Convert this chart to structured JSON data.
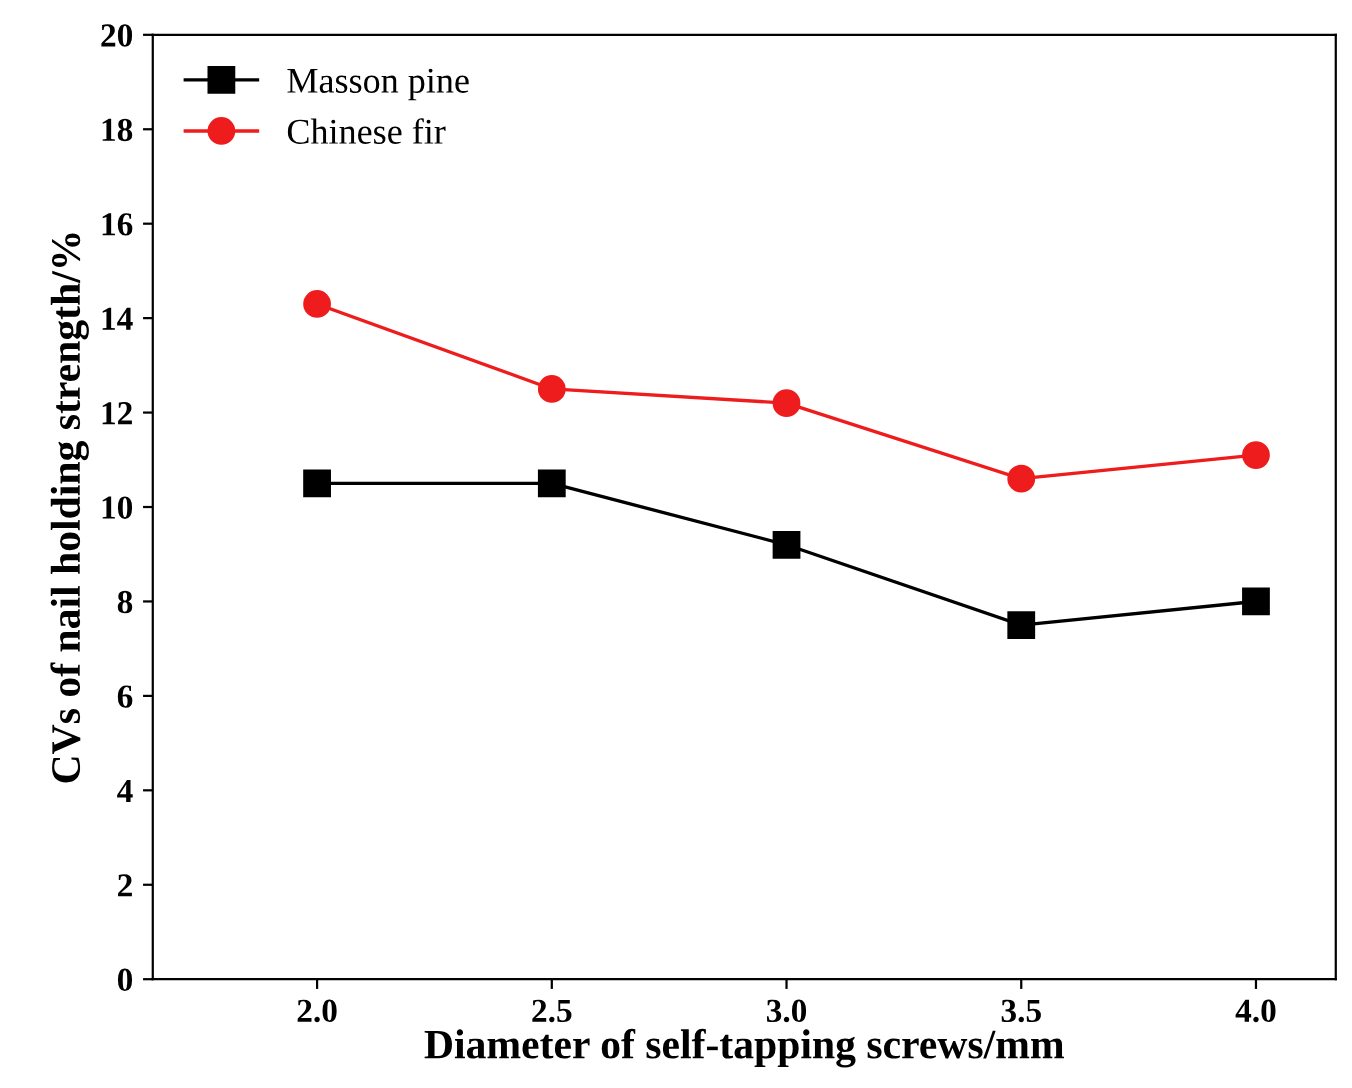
{
  "chart_data": {
    "type": "line",
    "xlabel": "Diameter of self-tapping screws/mm",
    "ylabel": "CVs of nail holding strength/%",
    "x": [
      2.0,
      2.5,
      3.0,
      3.5,
      4.0
    ],
    "series": [
      {
        "name": "Masson pine",
        "color": "#000000",
        "marker": "square",
        "values": [
          10.5,
          10.5,
          9.2,
          7.5,
          8.0
        ]
      },
      {
        "name": "Chinese fir",
        "color": "#ee1c1c",
        "marker": "circle",
        "values": [
          14.3,
          12.5,
          12.2,
          10.6,
          11.1
        ]
      }
    ],
    "xlim": [
      1.65,
      4.17
    ],
    "xticks": [
      {
        "value": 2.0,
        "label": "2.0"
      },
      {
        "value": 2.5,
        "label": "2.5"
      },
      {
        "value": 3.0,
        "label": "3.0"
      },
      {
        "value": 3.5,
        "label": "3.5"
      },
      {
        "value": 4.0,
        "label": "4.0"
      }
    ],
    "ylim": [
      0,
      20
    ],
    "yticks": [
      0,
      2,
      4,
      6,
      8,
      10,
      12,
      14,
      16,
      18,
      20
    ],
    "grid": false,
    "legend": "top left",
    "line_style": "solid"
  }
}
